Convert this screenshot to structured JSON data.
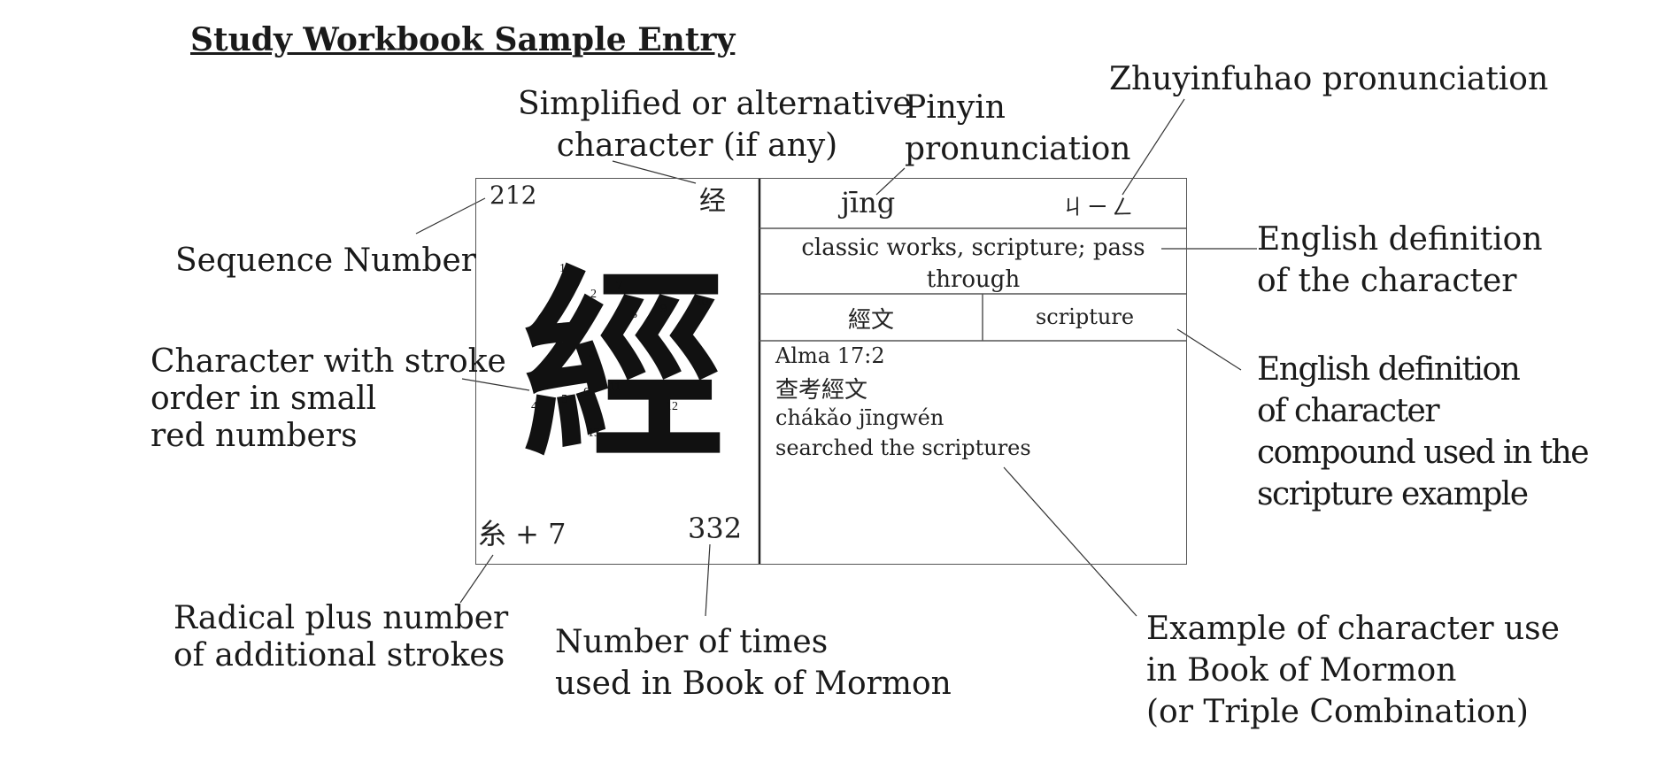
{
  "title": "Study Workbook Sample Entry",
  "labels": {
    "simplified": [
      "Simplified or alternative",
      "character (if any)"
    ],
    "pinyin": [
      "Pinyin",
      "pronunciation"
    ],
    "zhuyin": [
      "Zhuyinfuhao pronunciation"
    ],
    "sequence": [
      "Sequence Number"
    ],
    "stroke_order": [
      "Character with stroke",
      "order in small",
      "red numbers"
    ],
    "english_def": [
      "English definition",
      "of the character"
    ],
    "compound_def": [
      "English definition",
      "of character",
      "compound used in the",
      "scripture example"
    ],
    "radical": [
      "Radical plus number",
      "of additional strokes"
    ],
    "times_used": [
      "Number of times",
      "used in Book of Mormon"
    ],
    "example": [
      "Example of character use",
      "in Book of Mormon",
      "(or Triple Combination)"
    ]
  },
  "card": {
    "sequence_number": "212",
    "simplified_char": "经",
    "character": "經",
    "stroke_numbers": [
      "1",
      "2",
      "3",
      "4",
      "5",
      "6",
      "7",
      "8",
      "9",
      "10",
      "11",
      "12",
      "13"
    ],
    "radical_plus": "糸 + 7",
    "times_used": "332",
    "pinyin": "jīng",
    "zhuyin": "ㄐㄧㄥ",
    "definition": [
      "classic works, scripture; pass",
      "through"
    ],
    "compound": "經文",
    "compound_def": "scripture",
    "reference": "Alma 17:2",
    "example_chinese": "查考經文",
    "example_pinyin": "chákǎo jīngwén",
    "example_english": "searched the scriptures"
  }
}
